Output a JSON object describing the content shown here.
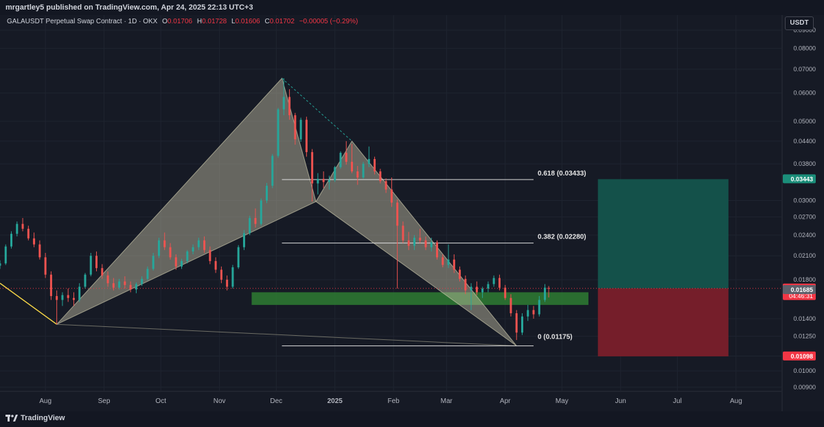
{
  "header": {
    "published": "mrgartley5 published on TradingView.com, Apr 24, 2025 22:13 UTC+3"
  },
  "legend": {
    "symbol": "GALAUSDT Perpetual Swap Contract · 1D · OKX",
    "o_label": "O",
    "o_value": "0.01706",
    "h_label": "H",
    "h_value": "0.01728",
    "l_label": "L",
    "l_value": "0.01606",
    "c_label": "C",
    "c_value": "0.01702",
    "change": "−0.00005 (−0.29%)"
  },
  "currency": "USDT",
  "footer": {
    "brand": "TradingView"
  },
  "colors": {
    "up": "#26a69a",
    "down": "#ef5350",
    "background": "#161a25",
    "pattern_fill": "#c8c4a8",
    "zone_green": "#2e7d32",
    "target_fill": "#14544c",
    "stop_fill": "#7a1f2a",
    "yellow_leg": "#f5d547"
  },
  "chart_data": {
    "type": "candlestick",
    "symbol": "GALAUSDT",
    "interval": "1D",
    "y_scale": "log",
    "ylim": [
      0.0088,
      0.0992
    ],
    "y_ticks": [
      "0.09000",
      "0.08000",
      "0.07000",
      "0.06000",
      "0.05000",
      "0.04400",
      "0.03800",
      "0.03000",
      "0.02700",
      "0.02400",
      "0.02100",
      "0.01800",
      "0.01400",
      "0.01250",
      "0.01100",
      "0.01000",
      "0.00900"
    ],
    "x_ticks": [
      "Aug",
      "Sep",
      "Oct",
      "Nov",
      "Dec",
      "2025",
      "Feb",
      "Mar",
      "Apr",
      "May",
      "Jun",
      "Jul",
      "Aug"
    ],
    "x_tick_dates": [
      "2024-08-01",
      "2024-09-01",
      "2024-10-01",
      "2024-11-01",
      "2024-12-01",
      "2025-01-01",
      "2025-02-01",
      "2025-03-01",
      "2025-04-01",
      "2025-05-01",
      "2025-06-01",
      "2025-07-01",
      "2025-08-01"
    ],
    "x_range": [
      "2024-07-08",
      "2025-08-25"
    ],
    "price_markers": [
      {
        "label": "0.03443",
        "value": 0.03443,
        "color": "#1b8e7a"
      },
      {
        "label": "0.01702",
        "sublabel": "04:46:31",
        "value": 0.01702,
        "color": "#f23645"
      },
      {
        "label": "0.01685",
        "value": 0.01685,
        "color": "#5d606b"
      },
      {
        "label": "0.01098",
        "value": 0.01098,
        "color": "#f23645"
      }
    ],
    "fib_levels": [
      {
        "label": "0.618 (0.03433)",
        "value": 0.03433
      },
      {
        "label": "0.382 (0.02280)",
        "value": 0.0228
      },
      {
        "label": "0 (0.01175)",
        "value": 0.01175
      }
    ],
    "fib_range": [
      "2024-12-04",
      "2025-04-16"
    ],
    "harmonic_points": [
      {
        "date": "2024-08-07",
        "price": 0.0135
      },
      {
        "date": "2024-12-04",
        "price": 0.066
      },
      {
        "date": "2024-12-22",
        "price": 0.0298
      },
      {
        "date": "2025-01-10",
        "price": 0.044
      },
      {
        "date": "2025-04-07",
        "price": 0.01175
      }
    ],
    "yellow_leg": [
      {
        "date": "2024-07-08",
        "price": 0.0176
      },
      {
        "date": "2024-08-07",
        "price": 0.0135
      }
    ],
    "support_zone": {
      "from_date": "2024-11-18",
      "to_date": "2025-05-15",
      "top": 0.0166,
      "bottom": 0.0153
    },
    "position": {
      "start_date": "2025-05-20",
      "end_date": "2025-07-28",
      "entry": 0.01702,
      "target": 0.03443,
      "stop": 0.01098
    },
    "candles": [
      {
        "d": "2024-07-08",
        "o": 0.0197,
        "h": 0.0204,
        "l": 0.0193,
        "c": 0.02
      },
      {
        "d": "2024-07-11",
        "o": 0.02,
        "h": 0.0226,
        "l": 0.0198,
        "c": 0.0223
      },
      {
        "d": "2024-07-14",
        "o": 0.0223,
        "h": 0.0246,
        "l": 0.022,
        "c": 0.0242
      },
      {
        "d": "2024-07-17",
        "o": 0.0242,
        "h": 0.0262,
        "l": 0.0238,
        "c": 0.0258
      },
      {
        "d": "2024-07-20",
        "o": 0.0258,
        "h": 0.0268,
        "l": 0.0246,
        "c": 0.025
      },
      {
        "d": "2024-07-23",
        "o": 0.025,
        "h": 0.0255,
        "l": 0.0232,
        "c": 0.0235
      },
      {
        "d": "2024-07-26",
        "o": 0.0235,
        "h": 0.0244,
        "l": 0.0222,
        "c": 0.0226
      },
      {
        "d": "2024-07-29",
        "o": 0.0226,
        "h": 0.0232,
        "l": 0.0205,
        "c": 0.0208
      },
      {
        "d": "2024-08-01",
        "o": 0.0208,
        "h": 0.0214,
        "l": 0.0182,
        "c": 0.0186
      },
      {
        "d": "2024-08-04",
        "o": 0.0186,
        "h": 0.019,
        "l": 0.0158,
        "c": 0.0162
      },
      {
        "d": "2024-08-07",
        "o": 0.0162,
        "h": 0.0168,
        "l": 0.0135,
        "c": 0.0158
      },
      {
        "d": "2024-08-10",
        "o": 0.0158,
        "h": 0.0166,
        "l": 0.0152,
        "c": 0.0163
      },
      {
        "d": "2024-08-13",
        "o": 0.0163,
        "h": 0.017,
        "l": 0.0156,
        "c": 0.016
      },
      {
        "d": "2024-08-16",
        "o": 0.016,
        "h": 0.0166,
        "l": 0.0152,
        "c": 0.0158
      },
      {
        "d": "2024-08-19",
        "o": 0.0158,
        "h": 0.0176,
        "l": 0.0156,
        "c": 0.0172
      },
      {
        "d": "2024-08-22",
        "o": 0.0172,
        "h": 0.0188,
        "l": 0.017,
        "c": 0.0186
      },
      {
        "d": "2024-08-25",
        "o": 0.0186,
        "h": 0.0214,
        "l": 0.0184,
        "c": 0.021
      },
      {
        "d": "2024-08-28",
        "o": 0.021,
        "h": 0.0216,
        "l": 0.019,
        "c": 0.0194
      },
      {
        "d": "2024-08-31",
        "o": 0.0194,
        "h": 0.0199,
        "l": 0.0181,
        "c": 0.0185
      },
      {
        "d": "2024-09-03",
        "o": 0.0185,
        "h": 0.019,
        "l": 0.0172,
        "c": 0.0176
      },
      {
        "d": "2024-09-06",
        "o": 0.0176,
        "h": 0.0182,
        "l": 0.0168,
        "c": 0.0171
      },
      {
        "d": "2024-09-09",
        "o": 0.0171,
        "h": 0.0181,
        "l": 0.0169,
        "c": 0.0178
      },
      {
        "d": "2024-09-12",
        "o": 0.0178,
        "h": 0.0184,
        "l": 0.017,
        "c": 0.0174
      },
      {
        "d": "2024-09-15",
        "o": 0.0174,
        "h": 0.0178,
        "l": 0.0166,
        "c": 0.0169
      },
      {
        "d": "2024-09-18",
        "o": 0.0169,
        "h": 0.0177,
        "l": 0.0165,
        "c": 0.0175
      },
      {
        "d": "2024-09-21",
        "o": 0.0175,
        "h": 0.0184,
        "l": 0.0173,
        "c": 0.0181
      },
      {
        "d": "2024-09-24",
        "o": 0.0181,
        "h": 0.0196,
        "l": 0.0179,
        "c": 0.0193
      },
      {
        "d": "2024-09-27",
        "o": 0.0193,
        "h": 0.0214,
        "l": 0.0191,
        "c": 0.021
      },
      {
        "d": "2024-09-30",
        "o": 0.021,
        "h": 0.0236,
        "l": 0.0207,
        "c": 0.0232
      },
      {
        "d": "2024-10-03",
        "o": 0.0232,
        "h": 0.0244,
        "l": 0.0218,
        "c": 0.0222
      },
      {
        "d": "2024-10-06",
        "o": 0.0222,
        "h": 0.0228,
        "l": 0.0205,
        "c": 0.0208
      },
      {
        "d": "2024-10-09",
        "o": 0.0208,
        "h": 0.0212,
        "l": 0.0192,
        "c": 0.0196
      },
      {
        "d": "2024-10-12",
        "o": 0.0196,
        "h": 0.0206,
        "l": 0.0193,
        "c": 0.0203
      },
      {
        "d": "2024-10-15",
        "o": 0.0203,
        "h": 0.0218,
        "l": 0.02,
        "c": 0.0216
      },
      {
        "d": "2024-10-18",
        "o": 0.0216,
        "h": 0.0226,
        "l": 0.0212,
        "c": 0.0222
      },
      {
        "d": "2024-10-21",
        "o": 0.0222,
        "h": 0.0236,
        "l": 0.0218,
        "c": 0.0232
      },
      {
        "d": "2024-10-24",
        "o": 0.0232,
        "h": 0.0238,
        "l": 0.0214,
        "c": 0.0218
      },
      {
        "d": "2024-10-27",
        "o": 0.0218,
        "h": 0.0223,
        "l": 0.0199,
        "c": 0.0203
      },
      {
        "d": "2024-10-30",
        "o": 0.0203,
        "h": 0.0208,
        "l": 0.0188,
        "c": 0.0192
      },
      {
        "d": "2024-11-02",
        "o": 0.0192,
        "h": 0.0196,
        "l": 0.0176,
        "c": 0.018
      },
      {
        "d": "2024-11-05",
        "o": 0.018,
        "h": 0.0185,
        "l": 0.0168,
        "c": 0.0172
      },
      {
        "d": "2024-11-08",
        "o": 0.0172,
        "h": 0.0198,
        "l": 0.017,
        "c": 0.0195
      },
      {
        "d": "2024-11-11",
        "o": 0.0195,
        "h": 0.0225,
        "l": 0.0193,
        "c": 0.0222
      },
      {
        "d": "2024-11-14",
        "o": 0.0222,
        "h": 0.0248,
        "l": 0.0218,
        "c": 0.0243
      },
      {
        "d": "2024-11-17",
        "o": 0.0243,
        "h": 0.0272,
        "l": 0.024,
        "c": 0.0268
      },
      {
        "d": "2024-11-20",
        "o": 0.0268,
        "h": 0.0285,
        "l": 0.0252,
        "c": 0.0258
      },
      {
        "d": "2024-11-23",
        "o": 0.0258,
        "h": 0.0304,
        "l": 0.0255,
        "c": 0.03
      },
      {
        "d": "2024-11-26",
        "o": 0.03,
        "h": 0.0336,
        "l": 0.0295,
        "c": 0.033
      },
      {
        "d": "2024-11-29",
        "o": 0.033,
        "h": 0.0405,
        "l": 0.0325,
        "c": 0.04
      },
      {
        "d": "2024-12-02",
        "o": 0.04,
        "h": 0.0545,
        "l": 0.0395,
        "c": 0.054
      },
      {
        "d": "2024-12-05",
        "o": 0.054,
        "h": 0.066,
        "l": 0.052,
        "c": 0.0585
      },
      {
        "d": "2024-12-08",
        "o": 0.0585,
        "h": 0.0615,
        "l": 0.0505,
        "c": 0.052
      },
      {
        "d": "2024-12-11",
        "o": 0.052,
        "h": 0.0528,
        "l": 0.043,
        "c": 0.0445
      },
      {
        "d": "2024-12-14",
        "o": 0.0445,
        "h": 0.0512,
        "l": 0.0438,
        "c": 0.0505
      },
      {
        "d": "2024-12-17",
        "o": 0.0505,
        "h": 0.0515,
        "l": 0.0398,
        "c": 0.041
      },
      {
        "d": "2024-12-20",
        "o": 0.041,
        "h": 0.0418,
        "l": 0.0298,
        "c": 0.0335
      },
      {
        "d": "2024-12-23",
        "o": 0.0335,
        "h": 0.0358,
        "l": 0.0312,
        "c": 0.0345
      },
      {
        "d": "2024-12-26",
        "o": 0.0345,
        "h": 0.0362,
        "l": 0.0325,
        "c": 0.0338
      },
      {
        "d": "2024-12-29",
        "o": 0.0338,
        "h": 0.0352,
        "l": 0.0322,
        "c": 0.0342
      },
      {
        "d": "2025-01-01",
        "o": 0.0342,
        "h": 0.0375,
        "l": 0.0338,
        "c": 0.0372
      },
      {
        "d": "2025-01-04",
        "o": 0.0372,
        "h": 0.0412,
        "l": 0.0368,
        "c": 0.0408
      },
      {
        "d": "2025-01-07",
        "o": 0.0408,
        "h": 0.044,
        "l": 0.0378,
        "c": 0.0385
      },
      {
        "d": "2025-01-10",
        "o": 0.0385,
        "h": 0.0432,
        "l": 0.0358,
        "c": 0.0362
      },
      {
        "d": "2025-01-13",
        "o": 0.0362,
        "h": 0.0375,
        "l": 0.0332,
        "c": 0.0348
      },
      {
        "d": "2025-01-16",
        "o": 0.0348,
        "h": 0.0385,
        "l": 0.0345,
        "c": 0.038
      },
      {
        "d": "2025-01-19",
        "o": 0.038,
        "h": 0.0425,
        "l": 0.0372,
        "c": 0.0392
      },
      {
        "d": "2025-01-22",
        "o": 0.0392,
        "h": 0.0398,
        "l": 0.0355,
        "c": 0.0362
      },
      {
        "d": "2025-01-25",
        "o": 0.0362,
        "h": 0.0368,
        "l": 0.0335,
        "c": 0.034
      },
      {
        "d": "2025-01-28",
        "o": 0.034,
        "h": 0.0346,
        "l": 0.0315,
        "c": 0.0322
      },
      {
        "d": "2025-01-31",
        "o": 0.0322,
        "h": 0.0348,
        "l": 0.0288,
        "c": 0.0296
      },
      {
        "d": "2025-02-03",
        "o": 0.0296,
        "h": 0.0302,
        "l": 0.017,
        "c": 0.0255
      },
      {
        "d": "2025-02-06",
        "o": 0.0255,
        "h": 0.0262,
        "l": 0.0228,
        "c": 0.0232
      },
      {
        "d": "2025-02-09",
        "o": 0.0232,
        "h": 0.0245,
        "l": 0.0218,
        "c": 0.0224
      },
      {
        "d": "2025-02-12",
        "o": 0.0224,
        "h": 0.024,
        "l": 0.0218,
        "c": 0.0236
      },
      {
        "d": "2025-02-15",
        "o": 0.0236,
        "h": 0.025,
        "l": 0.0228,
        "c": 0.0232
      },
      {
        "d": "2025-02-18",
        "o": 0.0232,
        "h": 0.0238,
        "l": 0.0218,
        "c": 0.0222
      },
      {
        "d": "2025-02-21",
        "o": 0.0222,
        "h": 0.0236,
        "l": 0.0216,
        "c": 0.0229
      },
      {
        "d": "2025-02-24",
        "o": 0.0229,
        "h": 0.0232,
        "l": 0.0205,
        "c": 0.0208
      },
      {
        "d": "2025-02-27",
        "o": 0.0208,
        "h": 0.0212,
        "l": 0.0195,
        "c": 0.0198
      },
      {
        "d": "2025-03-02",
        "o": 0.0198,
        "h": 0.0226,
        "l": 0.0194,
        "c": 0.0205
      },
      {
        "d": "2025-03-05",
        "o": 0.0205,
        "h": 0.0212,
        "l": 0.0188,
        "c": 0.0192
      },
      {
        "d": "2025-03-08",
        "o": 0.0192,
        "h": 0.0196,
        "l": 0.0178,
        "c": 0.0181
      },
      {
        "d": "2025-03-11",
        "o": 0.0181,
        "h": 0.0185,
        "l": 0.0164,
        "c": 0.0168
      },
      {
        "d": "2025-03-14",
        "o": 0.0168,
        "h": 0.0176,
        "l": 0.0148,
        "c": 0.0172
      },
      {
        "d": "2025-03-17",
        "o": 0.0172,
        "h": 0.0178,
        "l": 0.0163,
        "c": 0.0166
      },
      {
        "d": "2025-03-20",
        "o": 0.0166,
        "h": 0.0172,
        "l": 0.016,
        "c": 0.017
      },
      {
        "d": "2025-03-23",
        "o": 0.017,
        "h": 0.0178,
        "l": 0.0166,
        "c": 0.0175
      },
      {
        "d": "2025-03-26",
        "o": 0.0175,
        "h": 0.0185,
        "l": 0.0172,
        "c": 0.0182
      },
      {
        "d": "2025-03-29",
        "o": 0.0182,
        "h": 0.0186,
        "l": 0.0168,
        "c": 0.0171
      },
      {
        "d": "2025-04-01",
        "o": 0.0171,
        "h": 0.0174,
        "l": 0.0158,
        "c": 0.016
      },
      {
        "d": "2025-04-04",
        "o": 0.016,
        "h": 0.0164,
        "l": 0.0142,
        "c": 0.0145
      },
      {
        "d": "2025-04-07",
        "o": 0.0145,
        "h": 0.0148,
        "l": 0.0122,
        "c": 0.0128
      },
      {
        "d": "2025-04-10",
        "o": 0.0128,
        "h": 0.0145,
        "l": 0.0126,
        "c": 0.0142
      },
      {
        "d": "2025-04-13",
        "o": 0.0142,
        "h": 0.0153,
        "l": 0.0138,
        "c": 0.0148
      },
      {
        "d": "2025-04-16",
        "o": 0.0148,
        "h": 0.0152,
        "l": 0.014,
        "c": 0.0144
      },
      {
        "d": "2025-04-19",
        "o": 0.0144,
        "h": 0.0162,
        "l": 0.0142,
        "c": 0.0158
      },
      {
        "d": "2025-04-22",
        "o": 0.0158,
        "h": 0.0175,
        "l": 0.0156,
        "c": 0.0171
      },
      {
        "d": "2025-04-24",
        "o": 0.01706,
        "h": 0.01728,
        "l": 0.01606,
        "c": 0.01702
      }
    ]
  }
}
